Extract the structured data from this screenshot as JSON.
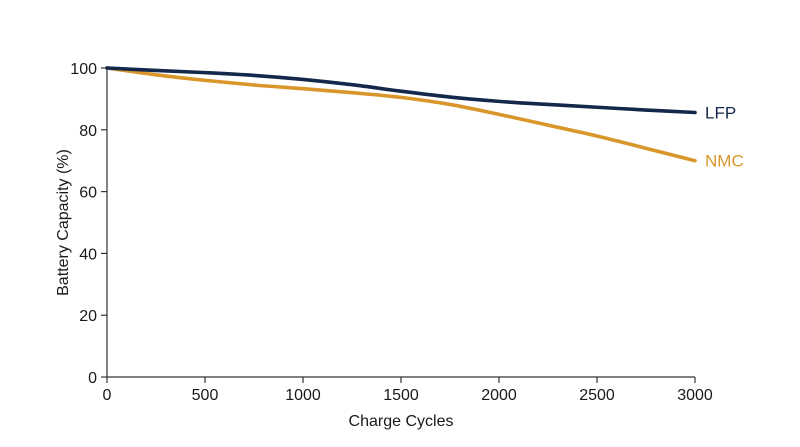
{
  "chart_data": {
    "type": "line",
    "title": "",
    "xlabel": "Charge Cycles",
    "ylabel": "Battery Capacity (%)",
    "xlim": [
      0,
      3000
    ],
    "ylim": [
      0,
      100
    ],
    "x_ticks": [
      0,
      500,
      1000,
      1500,
      2000,
      2500,
      3000
    ],
    "y_ticks": [
      0,
      20,
      40,
      60,
      80,
      100
    ],
    "grid": false,
    "legend": "inline-right",
    "series": [
      {
        "name": "LFP",
        "color": "#14284b",
        "x": [
          0,
          250,
          500,
          750,
          1000,
          1250,
          1500,
          1750,
          2000,
          2250,
          2500,
          2750,
          3000
        ],
        "y": [
          100,
          99.2,
          98.5,
          97.6,
          96.3,
          94.6,
          92.5,
          90.6,
          89.2,
          88.2,
          87.3,
          86.4,
          85.6
        ]
      },
      {
        "name": "NMC",
        "color": "#d9962b",
        "x": [
          0,
          250,
          500,
          750,
          1000,
          1250,
          1500,
          1750,
          2000,
          2250,
          2500,
          2750,
          3000
        ],
        "y": [
          100,
          97.8,
          96.0,
          94.5,
          93.3,
          92.0,
          90.5,
          88.2,
          85.0,
          81.5,
          78.0,
          74.0,
          70.0
        ]
      }
    ]
  }
}
